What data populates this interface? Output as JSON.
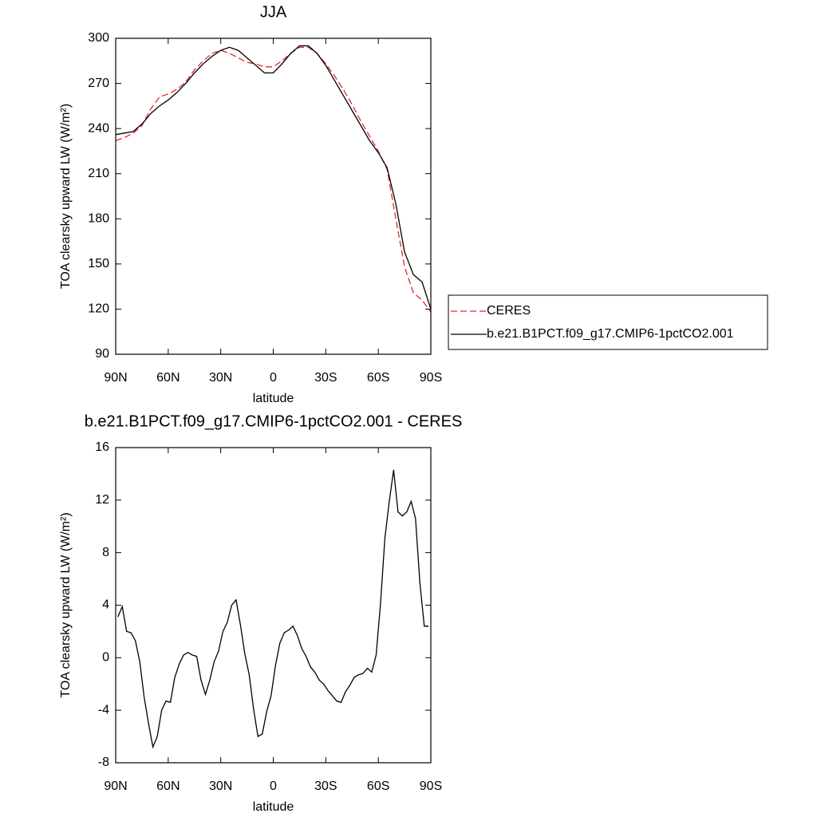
{
  "chart_data": [
    {
      "type": "line",
      "title": "JJA",
      "xlabel": "latitude",
      "ylabel": "TOA clearsky upward LW (W/m²)",
      "x": [
        90,
        85,
        80,
        75,
        70,
        65,
        60,
        55,
        50,
        45,
        40,
        35,
        30,
        25,
        20,
        15,
        10,
        5,
        0,
        -5,
        -10,
        -15,
        -20,
        -25,
        -30,
        -35,
        -40,
        -45,
        -50,
        -55,
        -60,
        -65,
        -70,
        -75,
        -80,
        -85,
        -90
      ],
      "series": [
        {
          "name": "CERES",
          "color": "#e8242a",
          "linestyle": "dashed",
          "values": [
            232,
            234,
            237,
            242,
            253,
            261,
            263,
            266,
            271,
            279,
            285,
            290,
            292,
            290,
            287,
            284,
            283,
            281,
            281,
            285,
            290,
            294,
            294,
            290,
            283,
            275,
            266,
            256,
            245,
            235,
            225,
            213,
            180,
            148,
            131,
            126,
            118
          ]
        },
        {
          "name": "b.e21.B1PCT.f09_g17.CMIP6-1pctCO2.001",
          "color": "#000000",
          "linestyle": "solid",
          "values": [
            236,
            237,
            238,
            243,
            250,
            255,
            259,
            264,
            270,
            277,
            283,
            288,
            292,
            294,
            292,
            287,
            282,
            277,
            277,
            283,
            290,
            295,
            295,
            290,
            282,
            272,
            262,
            252,
            242,
            232,
            224,
            214,
            190,
            158,
            143,
            138,
            120
          ]
        }
      ],
      "xlim": [
        90,
        -90
      ],
      "xticks": [
        {
          "value": 90,
          "label": "90N"
        },
        {
          "value": 60,
          "label": "60N"
        },
        {
          "value": 30,
          "label": "30N"
        },
        0,
        {
          "value": -30,
          "label": "30S"
        },
        {
          "value": -60,
          "label": "60S"
        },
        {
          "value": -90,
          "label": "90S"
        }
      ],
      "ylim": [
        90,
        300
      ],
      "yticks": [
        90,
        120,
        150,
        180,
        210,
        240,
        270,
        300
      ],
      "legend": "right"
    },
    {
      "type": "line",
      "title": "b.e21.B1PCT.f09_g17.CMIP6-1pctCO2.001 - CERES",
      "xlabel": "latitude",
      "ylabel": "TOA clearsky upward LW (W/m²)",
      "x": [
        88.75,
        86.25,
        83.75,
        81.25,
        78.75,
        76.25,
        73.75,
        71.25,
        68.75,
        66.25,
        63.75,
        61.25,
        58.75,
        56.25,
        53.75,
        51.25,
        48.75,
        46.25,
        43.75,
        41.25,
        38.75,
        36.25,
        33.75,
        31.25,
        28.75,
        26.25,
        23.75,
        21.25,
        18.75,
        16.25,
        13.75,
        11.25,
        8.75,
        6.25,
        3.75,
        1.25,
        -1.25,
        -3.75,
        -6.25,
        -8.75,
        -11.25,
        -13.75,
        -16.25,
        -18.75,
        -21.25,
        -23.75,
        -26.25,
        -28.75,
        -31.25,
        -33.75,
        -36.25,
        -38.75,
        -41.25,
        -43.75,
        -46.25,
        -48.75,
        -51.25,
        -53.75,
        -56.25,
        -58.75,
        -61.25,
        -63.75,
        -66.25,
        -68.75,
        -71.25,
        -73.75,
        -76.25,
        -78.75,
        -81.25,
        -83.75,
        -86.25,
        -88.75
      ],
      "series": [
        {
          "color": "#000000",
          "linestyle": "solid",
          "values": [
            3.1,
            3.9,
            2,
            1.9,
            1.3,
            -0.3,
            -3,
            -5,
            -6.8,
            -6,
            -4,
            -3.3,
            -3.4,
            -1.5,
            -0.5,
            0.2,
            0.4,
            0.2,
            0.1,
            -1.7,
            -2.8,
            -1.7,
            -0.3,
            0.5,
            2,
            2.7,
            4,
            4.4,
            2.5,
            0.3,
            -1.3,
            -3.9,
            -6,
            -5.8,
            -4.1,
            -2.9,
            -0.6,
            1.1,
            1.9,
            2.1,
            2.4,
            1.7,
            0.7,
            0.1,
            -0.7,
            -1.1,
            -1.7,
            -2,
            -2.5,
            -2.9,
            -3.3,
            -3.4,
            -2.6,
            -2.1,
            -1.5,
            -1.3,
            -1.2,
            -0.8,
            -1.1,
            0.2,
            4.1,
            9.1,
            11.9,
            14.3,
            11.1,
            10.8,
            11.1,
            11.9,
            10.6,
            5.7,
            2.4,
            2.4
          ]
        }
      ],
      "xlim": [
        90,
        -90
      ],
      "xticks": [
        {
          "value": 90,
          "label": "90N"
        },
        {
          "value": 60,
          "label": "60N"
        },
        {
          "value": 30,
          "label": "30N"
        },
        0,
        {
          "value": -30,
          "label": "30S"
        },
        {
          "value": -60,
          "label": "60S"
        },
        {
          "value": -90,
          "label": "90S"
        }
      ],
      "ylim": [
        -8,
        16
      ],
      "yticks": [
        -8,
        -4,
        0,
        4,
        8,
        12,
        16
      ]
    }
  ]
}
